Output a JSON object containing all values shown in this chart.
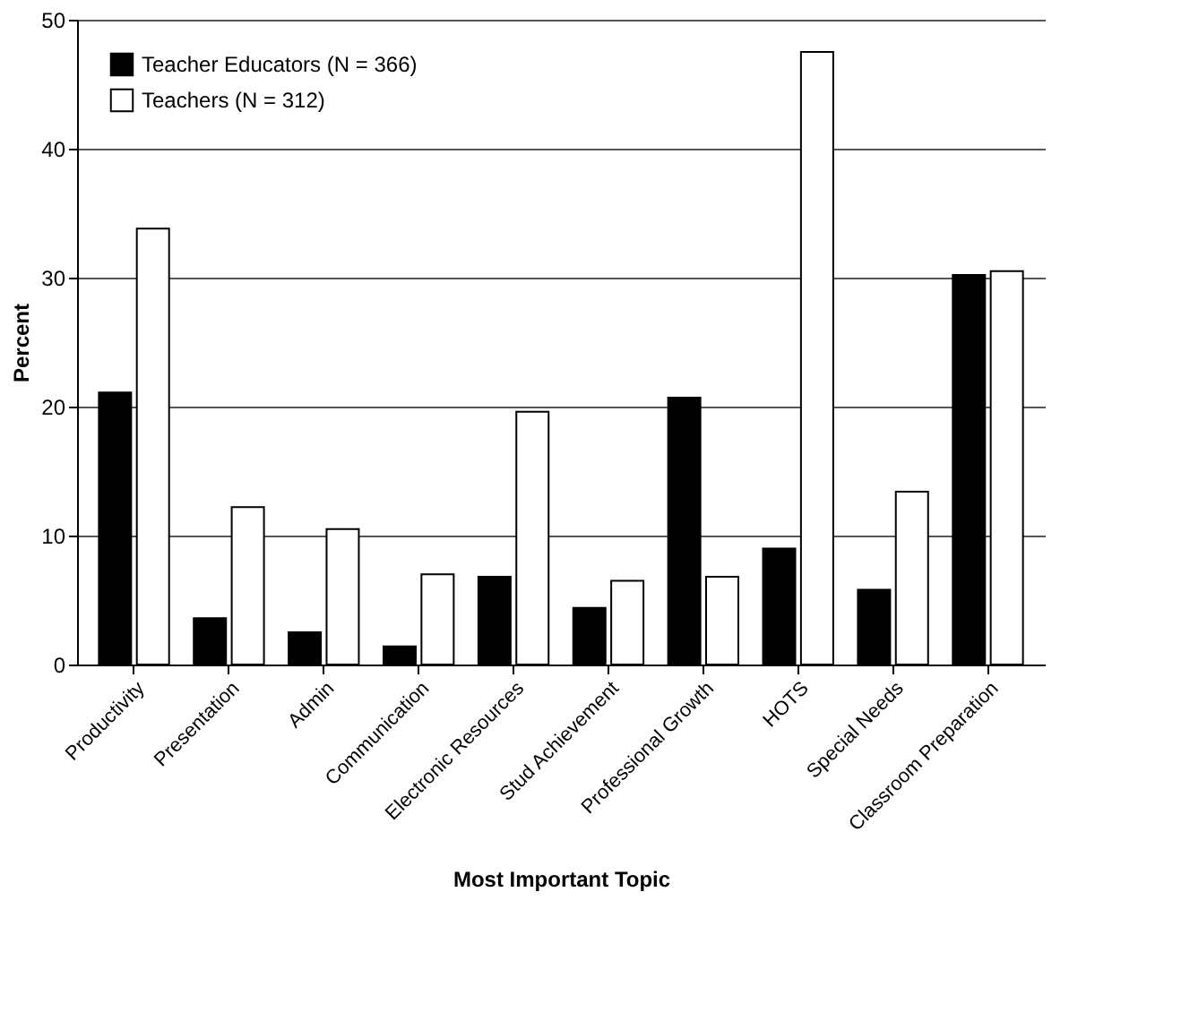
{
  "chart_data": {
    "type": "bar",
    "xlabel": "Most Important Topic",
    "ylabel": "Percent",
    "categories": [
      "Productivity",
      "Presentation",
      "Admin",
      "Communication",
      "Electronic Resources",
      "Stud Achievement",
      "Professional Growth",
      "HOTS",
      "Special Needs",
      "Classroom Preparation"
    ],
    "series": [
      {
        "name": "Teacher Educators (N = 366)",
        "color": "#000000",
        "values": [
          21.1,
          3.6,
          2.5,
          1.4,
          6.8,
          4.4,
          20.7,
          9.0,
          5.8,
          30.2
        ]
      },
      {
        "name": "Teachers (N = 312)",
        "color": "#ffffff",
        "values": [
          33.8,
          12.2,
          10.5,
          7.0,
          19.6,
          6.5,
          6.8,
          47.5,
          13.4,
          30.5
        ]
      }
    ],
    "ylim": [
      0,
      50
    ],
    "yticks": [
      0,
      10,
      20,
      30,
      40,
      50
    ],
    "grid": "y",
    "legend": "top left"
  }
}
